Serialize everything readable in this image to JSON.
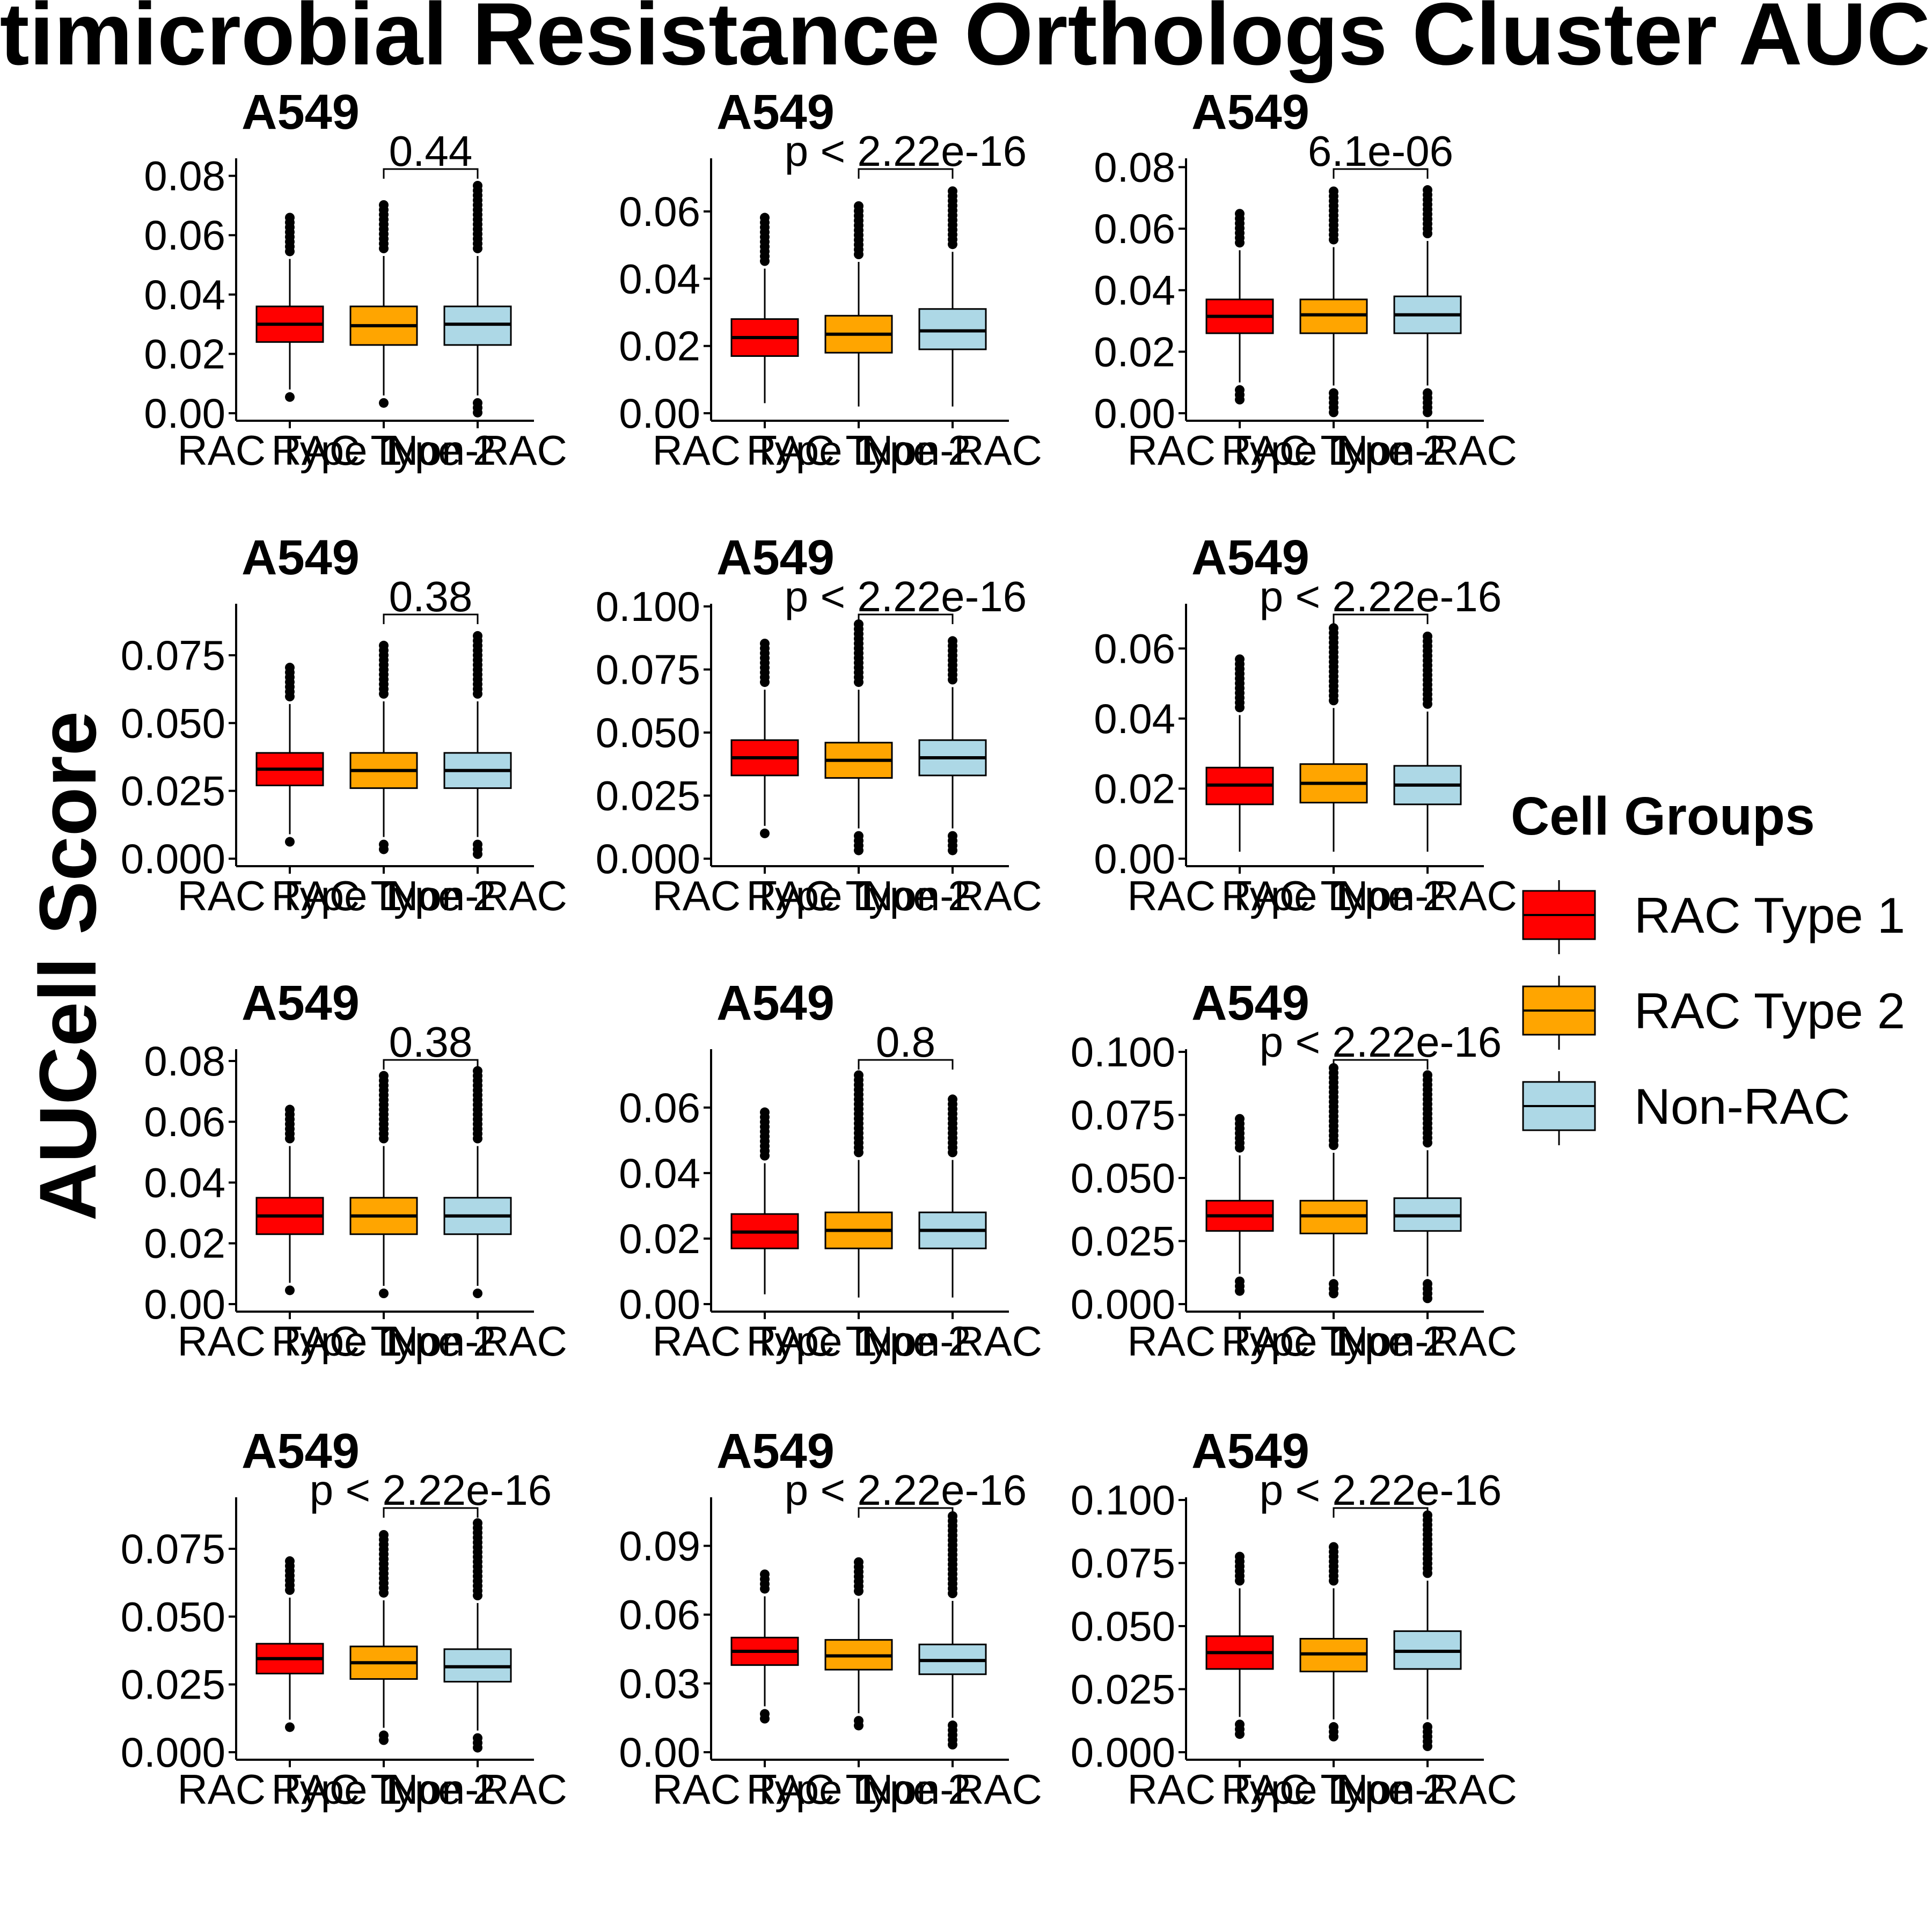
{
  "colors": {
    "rac1": "#FF0000",
    "rac2": "#FFA500",
    "nonrac": "#ADD8E6"
  },
  "chart_data": {
    "type": "boxplot",
    "title": "Antimicrobial Resistance Orthologs Cluster AUCell",
    "ylabel": "AUCell Score",
    "legend": {
      "title": "Cell Groups",
      "placement": "right",
      "entries": [
        {
          "label": "RAC Type 1",
          "color": "#FF0000"
        },
        {
          "label": "RAC Type 2",
          "color": "#FFA500"
        },
        {
          "label": "Non-RAC",
          "color": "#ADD8E6"
        }
      ]
    },
    "categories": [
      "RAC Type 1",
      "RAC Type 2",
      "Non-RAC"
    ],
    "panels": [
      {
        "title": "A549",
        "ylim": [
          0,
          0.085
        ],
        "yticks": [
          0,
          0.02,
          0.04,
          0.06,
          0.08
        ],
        "ytick_labels": [
          "0.00",
          "0.02",
          "0.04",
          "0.06",
          "0.08"
        ],
        "pvalue": "0.44",
        "boxes": [
          {
            "q1": 0.024,
            "median": 0.03,
            "q3": 0.036,
            "wlow": 0.008,
            "whigh": 0.052,
            "omin": 0.005,
            "omax": 0.066
          },
          {
            "q1": 0.023,
            "median": 0.0295,
            "q3": 0.036,
            "wlow": 0.006,
            "whigh": 0.053,
            "omin": 0.003,
            "omax": 0.071
          },
          {
            "q1": 0.023,
            "median": 0.03,
            "q3": 0.036,
            "wlow": 0.006,
            "whigh": 0.053,
            "omin": 0.0,
            "omax": 0.077
          }
        ]
      },
      {
        "title": "A549",
        "ylim": [
          0,
          0.075
        ],
        "yticks": [
          0,
          0.02,
          0.04,
          0.06
        ],
        "ytick_labels": [
          "0.00",
          "0.02",
          "0.04",
          "0.06"
        ],
        "pvalue": "p < 2.22e-16",
        "boxes": [
          {
            "q1": 0.017,
            "median": 0.0225,
            "q3": 0.028,
            "wlow": 0.003,
            "whigh": 0.043,
            "omin": 0.003,
            "omax": 0.059
          },
          {
            "q1": 0.018,
            "median": 0.0235,
            "q3": 0.029,
            "wlow": 0.002,
            "whigh": 0.045,
            "omin": 0.0,
            "omax": 0.062
          },
          {
            "q1": 0.019,
            "median": 0.0245,
            "q3": 0.031,
            "wlow": 0.002,
            "whigh": 0.048,
            "omin": 0.0,
            "omax": 0.067
          }
        ]
      },
      {
        "title": "A549",
        "ylim": [
          0,
          0.082
        ],
        "yticks": [
          0,
          0.02,
          0.04,
          0.06,
          0.08
        ],
        "ytick_labels": [
          "0.00",
          "0.02",
          "0.04",
          "0.06",
          "0.08"
        ],
        "pvalue": "6.1e-06",
        "boxes": [
          {
            "q1": 0.026,
            "median": 0.0315,
            "q3": 0.037,
            "wlow": 0.01,
            "whigh": 0.053,
            "omin": 0.003,
            "omax": 0.065
          },
          {
            "q1": 0.026,
            "median": 0.032,
            "q3": 0.037,
            "wlow": 0.009,
            "whigh": 0.054,
            "omin": 0.0,
            "omax": 0.073
          },
          {
            "q1": 0.026,
            "median": 0.032,
            "q3": 0.038,
            "wlow": 0.009,
            "whigh": 0.056,
            "omin": 0.0,
            "omax": 0.074
          }
        ]
      },
      {
        "title": "A549",
        "ylim": [
          0,
          0.093
        ],
        "yticks": [
          0,
          0.025,
          0.05,
          0.075
        ],
        "ytick_labels": [
          "0.000",
          "0.025",
          "0.050",
          "0.075"
        ],
        "pvalue": "0.38",
        "boxes": [
          {
            "q1": 0.027,
            "median": 0.033,
            "q3": 0.039,
            "wlow": 0.009,
            "whigh": 0.057,
            "omin": 0.005,
            "omax": 0.072
          },
          {
            "q1": 0.026,
            "median": 0.0325,
            "q3": 0.039,
            "wlow": 0.008,
            "whigh": 0.058,
            "omin": 0.003,
            "omax": 0.08
          },
          {
            "q1": 0.026,
            "median": 0.0325,
            "q3": 0.039,
            "wlow": 0.008,
            "whigh": 0.058,
            "omin": 0.0,
            "omax": 0.083
          }
        ]
      },
      {
        "title": "A549",
        "ylim": [
          0,
          0.1
        ],
        "yticks": [
          0,
          0.025,
          0.05,
          0.075,
          0.1
        ],
        "ytick_labels": [
          "0.000",
          "0.025",
          "0.050",
          "0.075",
          "0.100"
        ],
        "pvalue": "p < 2.22e-16",
        "boxes": [
          {
            "q1": 0.033,
            "median": 0.04,
            "q3": 0.047,
            "wlow": 0.013,
            "whigh": 0.067,
            "omin": 0.009,
            "omax": 0.086
          },
          {
            "q1": 0.032,
            "median": 0.039,
            "q3": 0.046,
            "wlow": 0.012,
            "whigh": 0.067,
            "omin": 0.003,
            "omax": 0.093
          },
          {
            "q1": 0.033,
            "median": 0.04,
            "q3": 0.047,
            "wlow": 0.012,
            "whigh": 0.068,
            "omin": 0.002,
            "omax": 0.087
          }
        ]
      },
      {
        "title": "A549",
        "ylim": [
          0,
          0.072
        ],
        "yticks": [
          0,
          0.02,
          0.04,
          0.06
        ],
        "ytick_labels": [
          "0.00",
          "0.02",
          "0.04",
          "0.06"
        ],
        "pvalue": "p < 2.22e-16",
        "boxes": [
          {
            "q1": 0.0155,
            "median": 0.021,
            "q3": 0.026,
            "wlow": 0.002,
            "whigh": 0.041,
            "omin": 0.002,
            "omax": 0.057
          },
          {
            "q1": 0.016,
            "median": 0.0215,
            "q3": 0.027,
            "wlow": 0.002,
            "whigh": 0.043,
            "omin": 0.0,
            "omax": 0.066
          },
          {
            "q1": 0.0155,
            "median": 0.021,
            "q3": 0.0265,
            "wlow": 0.002,
            "whigh": 0.042,
            "omin": 0.0,
            "omax": 0.064
          }
        ]
      },
      {
        "title": "A549",
        "ylim": [
          0,
          0.083
        ],
        "yticks": [
          0,
          0.02,
          0.04,
          0.06,
          0.08
        ],
        "ytick_labels": [
          "0.00",
          "0.02",
          "0.04",
          "0.06",
          "0.08"
        ],
        "pvalue": "0.38",
        "boxes": [
          {
            "q1": 0.023,
            "median": 0.029,
            "q3": 0.035,
            "wlow": 0.007,
            "whigh": 0.052,
            "omin": 0.004,
            "omax": 0.065
          },
          {
            "q1": 0.023,
            "median": 0.029,
            "q3": 0.035,
            "wlow": 0.006,
            "whigh": 0.052,
            "omin": 0.002,
            "omax": 0.076
          },
          {
            "q1": 0.023,
            "median": 0.029,
            "q3": 0.035,
            "wlow": 0.006,
            "whigh": 0.052,
            "omin": 0.002,
            "omax": 0.077
          }
        ]
      },
      {
        "title": "A549",
        "ylim": [
          0,
          0.077
        ],
        "yticks": [
          0,
          0.02,
          0.04,
          0.06
        ],
        "ytick_labels": [
          "0.00",
          "0.02",
          "0.04",
          "0.06"
        ],
        "pvalue": "0.8",
        "boxes": [
          {
            "q1": 0.017,
            "median": 0.022,
            "q3": 0.0275,
            "wlow": 0.003,
            "whigh": 0.043,
            "omin": 0.003,
            "omax": 0.059
          },
          {
            "q1": 0.017,
            "median": 0.0225,
            "q3": 0.028,
            "wlow": 0.002,
            "whigh": 0.044,
            "omin": 0.0,
            "omax": 0.07
          },
          {
            "q1": 0.017,
            "median": 0.0225,
            "q3": 0.028,
            "wlow": 0.002,
            "whigh": 0.044,
            "omin": 0.0,
            "omax": 0.063
          }
        ]
      },
      {
        "title": "A549",
        "ylim": [
          0,
          0.1
        ],
        "yticks": [
          0,
          0.025,
          0.05,
          0.075,
          0.1
        ],
        "ytick_labels": [
          "0.000",
          "0.025",
          "0.050",
          "0.075",
          "0.100"
        ],
        "pvalue": "p < 2.22e-16",
        "boxes": [
          {
            "q1": 0.029,
            "median": 0.035,
            "q3": 0.041,
            "wlow": 0.012,
            "whigh": 0.059,
            "omin": 0.005,
            "omax": 0.075
          },
          {
            "q1": 0.028,
            "median": 0.035,
            "q3": 0.041,
            "wlow": 0.011,
            "whigh": 0.06,
            "omin": 0.003,
            "omax": 0.094
          },
          {
            "q1": 0.029,
            "median": 0.035,
            "q3": 0.042,
            "wlow": 0.011,
            "whigh": 0.061,
            "omin": 0.002,
            "omax": 0.091
          }
        ]
      },
      {
        "title": "A549",
        "ylim": [
          0,
          0.093
        ],
        "yticks": [
          0,
          0.025,
          0.05,
          0.075
        ],
        "ytick_labels": [
          "0.000",
          "0.025",
          "0.050",
          "0.075"
        ],
        "pvalue": "p < 2.22e-16",
        "boxes": [
          {
            "q1": 0.029,
            "median": 0.0345,
            "q3": 0.04,
            "wlow": 0.012,
            "whigh": 0.057,
            "omin": 0.008,
            "omax": 0.071
          },
          {
            "q1": 0.027,
            "median": 0.033,
            "q3": 0.039,
            "wlow": 0.009,
            "whigh": 0.056,
            "omin": 0.004,
            "omax": 0.081
          },
          {
            "q1": 0.026,
            "median": 0.0315,
            "q3": 0.038,
            "wlow": 0.008,
            "whigh": 0.055,
            "omin": 0.0,
            "omax": 0.085
          }
        ]
      },
      {
        "title": "A549",
        "ylim": [
          0,
          0.11
        ],
        "yticks": [
          0,
          0.03,
          0.06,
          0.09
        ],
        "ytick_labels": [
          "0.00",
          "0.03",
          "0.06",
          "0.09"
        ],
        "pvalue": "p < 2.22e-16",
        "boxes": [
          {
            "q1": 0.038,
            "median": 0.044,
            "q3": 0.05,
            "wlow": 0.02,
            "whigh": 0.068,
            "omin": 0.014,
            "omax": 0.078
          },
          {
            "q1": 0.036,
            "median": 0.042,
            "q3": 0.049,
            "wlow": 0.017,
            "whigh": 0.067,
            "omin": 0.011,
            "omax": 0.085
          },
          {
            "q1": 0.034,
            "median": 0.04,
            "q3": 0.047,
            "wlow": 0.015,
            "whigh": 0.066,
            "omin": 0.002,
            "omax": 0.103
          }
        ]
      },
      {
        "title": "A549",
        "ylim": [
          0,
          0.1
        ],
        "yticks": [
          0,
          0.025,
          0.05,
          0.075,
          0.1
        ],
        "ytick_labels": [
          "0.000",
          "0.025",
          "0.050",
          "0.075",
          "0.100"
        ],
        "pvalue": "p < 2.22e-16",
        "boxes": [
          {
            "q1": 0.033,
            "median": 0.0395,
            "q3": 0.046,
            "wlow": 0.014,
            "whigh": 0.065,
            "omin": 0.006,
            "omax": 0.079
          },
          {
            "q1": 0.032,
            "median": 0.039,
            "q3": 0.045,
            "wlow": 0.013,
            "whigh": 0.065,
            "omin": 0.005,
            "omax": 0.083
          },
          {
            "q1": 0.033,
            "median": 0.04,
            "q3": 0.048,
            "wlow": 0.013,
            "whigh": 0.068,
            "omin": 0.002,
            "omax": 0.095
          }
        ]
      }
    ]
  }
}
